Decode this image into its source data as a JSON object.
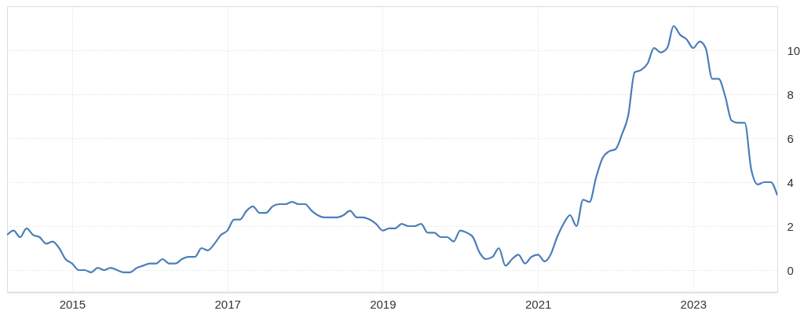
{
  "chart_data": {
    "type": "line",
    "x": [
      "2014-03",
      "2014-04",
      "2014-05",
      "2014-06",
      "2014-07",
      "2014-08",
      "2014-09",
      "2014-10",
      "2014-11",
      "2014-12",
      "2015-01",
      "2015-02",
      "2015-03",
      "2015-04",
      "2015-05",
      "2015-06",
      "2015-07",
      "2015-08",
      "2015-09",
      "2015-10",
      "2015-11",
      "2015-12",
      "2016-01",
      "2016-02",
      "2016-03",
      "2016-04",
      "2016-05",
      "2016-06",
      "2016-07",
      "2016-08",
      "2016-09",
      "2016-10",
      "2016-11",
      "2016-12",
      "2017-01",
      "2017-02",
      "2017-03",
      "2017-04",
      "2017-05",
      "2017-06",
      "2017-07",
      "2017-08",
      "2017-09",
      "2017-10",
      "2017-11",
      "2017-12",
      "2018-01",
      "2018-02",
      "2018-03",
      "2018-04",
      "2018-05",
      "2018-06",
      "2018-07",
      "2018-08",
      "2018-09",
      "2018-10",
      "2018-11",
      "2018-12",
      "2019-01",
      "2019-02",
      "2019-03",
      "2019-04",
      "2019-05",
      "2019-06",
      "2019-07",
      "2019-08",
      "2019-09",
      "2019-10",
      "2019-11",
      "2019-12",
      "2020-01",
      "2020-02",
      "2020-03",
      "2020-04",
      "2020-05",
      "2020-06",
      "2020-07",
      "2020-08",
      "2020-09",
      "2020-10",
      "2020-11",
      "2020-12",
      "2021-01",
      "2021-02",
      "2021-03",
      "2021-04",
      "2021-05",
      "2021-06",
      "2021-07",
      "2021-08",
      "2021-09",
      "2021-10",
      "2021-11",
      "2021-12",
      "2022-01",
      "2022-02",
      "2022-03",
      "2022-04",
      "2022-05",
      "2022-06",
      "2022-07",
      "2022-08",
      "2022-09",
      "2022-10",
      "2022-11",
      "2022-12",
      "2023-01",
      "2023-02",
      "2023-03",
      "2023-04",
      "2023-05",
      "2023-06",
      "2023-07",
      "2023-08",
      "2023-09",
      "2023-10",
      "2023-11",
      "2023-12",
      "2024-01",
      "2024-02"
    ],
    "series": [
      {
        "color": "#4a7ebb",
        "values": [
          1.6,
          1.8,
          1.5,
          1.9,
          1.6,
          1.5,
          1.2,
          1.3,
          1.0,
          0.5,
          0.3,
          0.0,
          0.0,
          -0.1,
          0.1,
          0.0,
          0.1,
          0.0,
          -0.1,
          -0.1,
          0.1,
          0.2,
          0.3,
          0.3,
          0.5,
          0.3,
          0.3,
          0.5,
          0.6,
          0.6,
          1.0,
          0.9,
          1.2,
          1.6,
          1.8,
          2.3,
          2.3,
          2.7,
          2.9,
          2.6,
          2.6,
          2.9,
          3.0,
          3.0,
          3.1,
          3.0,
          3.0,
          2.7,
          2.5,
          2.4,
          2.4,
          2.4,
          2.5,
          2.7,
          2.4,
          2.4,
          2.3,
          2.1,
          1.8,
          1.9,
          1.9,
          2.1,
          2.0,
          2.0,
          2.1,
          1.7,
          1.7,
          1.5,
          1.5,
          1.3,
          1.8,
          1.7,
          1.5,
          0.8,
          0.5,
          0.6,
          1.0,
          0.2,
          0.5,
          0.7,
          0.3,
          0.6,
          0.7,
          0.4,
          0.7,
          1.5,
          2.1,
          2.5,
          2.0,
          3.2,
          3.1,
          4.2,
          5.1,
          5.4,
          5.5,
          6.2,
          7.0,
          9.0,
          9.1,
          9.4,
          10.1,
          9.9,
          10.1,
          11.1,
          10.7,
          10.5,
          10.1,
          10.4,
          10.1,
          8.7,
          8.7,
          7.9,
          6.8,
          6.7,
          6.7,
          4.6,
          3.9,
          4.0,
          4.0,
          3.4
        ]
      }
    ],
    "xlim": [
      "2014-03",
      "2024-02"
    ],
    "xticks": [
      "2015",
      "2017",
      "2019",
      "2021",
      "2023"
    ],
    "ylim": [
      -1,
      12
    ],
    "yticks": [
      0,
      2,
      4,
      6,
      8,
      10
    ],
    "grid": true,
    "marker": "none",
    "line_style": "solid"
  }
}
